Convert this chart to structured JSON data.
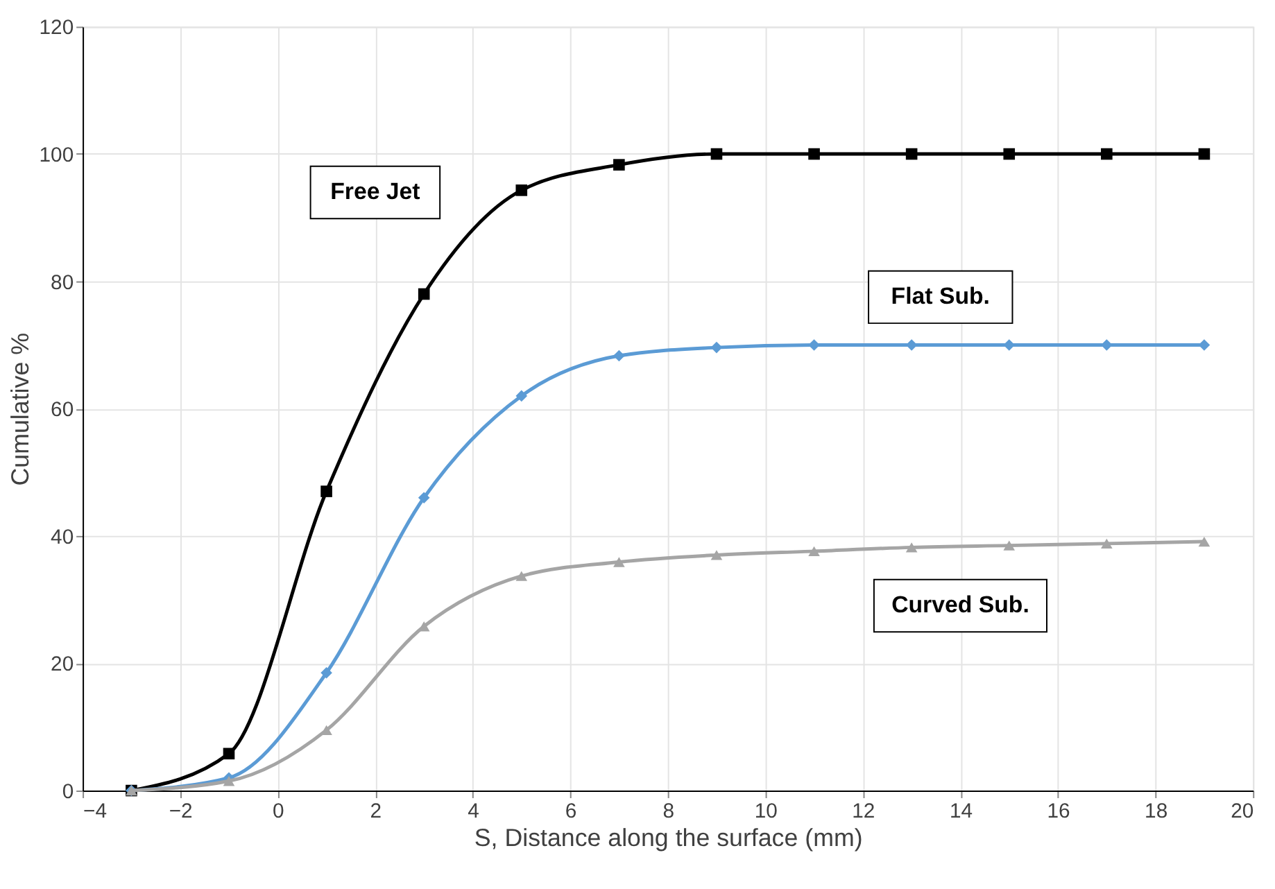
{
  "chart_data": {
    "type": "line",
    "xlabel": "S, Distance along the surface (mm)",
    "ylabel": "Cumulative %",
    "x": [
      -3,
      -1,
      1,
      3,
      5,
      7,
      9,
      11,
      13,
      15,
      17,
      19
    ],
    "series": [
      {
        "name": "Free Jet",
        "color": "#000000",
        "marker": "square",
        "values": [
          0,
          5.8,
          47,
          78,
          94.3,
          98.3,
          100,
          100,
          100,
          100,
          100,
          100
        ]
      },
      {
        "name": "Flat Sub.",
        "color": "#5b9bd5",
        "marker": "diamond",
        "values": [
          0,
          2,
          18.5,
          46,
          62,
          68.3,
          69.6,
          70,
          70,
          70,
          70,
          70
        ]
      },
      {
        "name": "Curved Sub.",
        "color": "#a5a5a5",
        "marker": "triangle",
        "values": [
          0,
          1.5,
          9.5,
          25.8,
          33.7,
          35.9,
          37,
          37.6,
          38.2,
          38.5,
          38.8,
          39.1
        ]
      }
    ],
    "xlim": [
      -4,
      20
    ],
    "xticks": [
      -4,
      -2,
      0,
      2,
      4,
      6,
      8,
      10,
      12,
      14,
      16,
      18,
      20
    ],
    "ylim": [
      0,
      120
    ],
    "yticks": [
      0,
      20,
      40,
      60,
      80,
      100,
      120
    ],
    "grid": true,
    "line_style": "solid"
  }
}
